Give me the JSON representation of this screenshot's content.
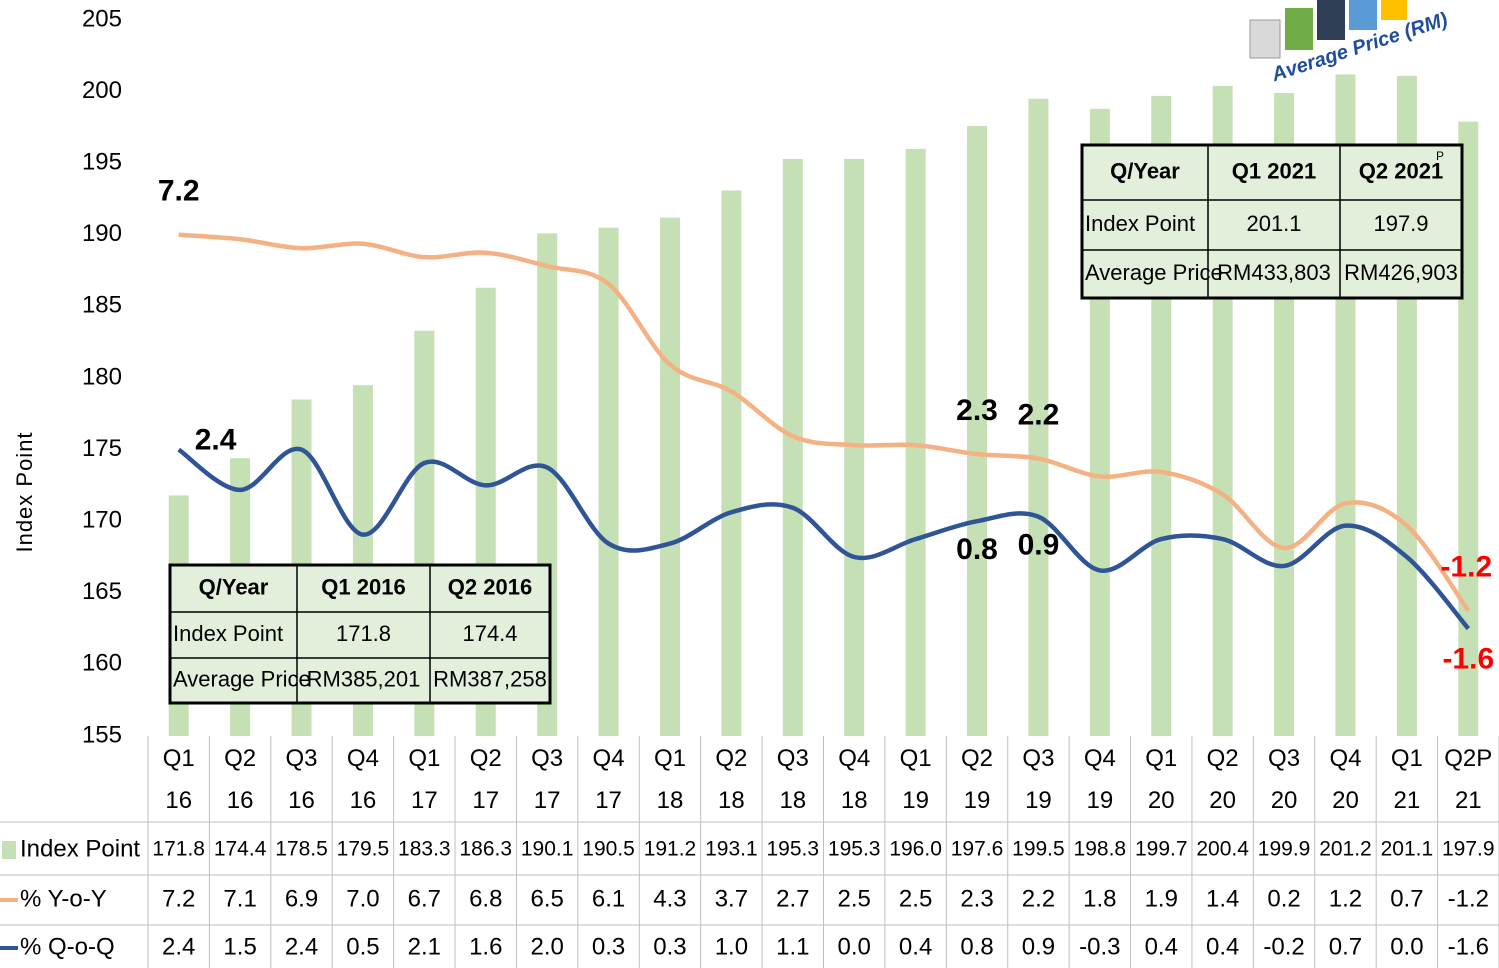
{
  "chart_data": {
    "type": "bar",
    "y_label": "Index Point",
    "logo_text": "Average Price (RM)",
    "categories": [
      [
        "Q1",
        "16"
      ],
      [
        "Q2",
        "16"
      ],
      [
        "Q3",
        "16"
      ],
      [
        "Q4",
        "16"
      ],
      [
        "Q1",
        "17"
      ],
      [
        "Q2",
        "17"
      ],
      [
        "Q3",
        "17"
      ],
      [
        "Q4",
        "17"
      ],
      [
        "Q1",
        "18"
      ],
      [
        "Q2",
        "18"
      ],
      [
        "Q3",
        "18"
      ],
      [
        "Q4",
        "18"
      ],
      [
        "Q1",
        "19"
      ],
      [
        "Q2",
        "19"
      ],
      [
        "Q3",
        "19"
      ],
      [
        "Q4",
        "19"
      ],
      [
        "Q1",
        "20"
      ],
      [
        "Q2",
        "20"
      ],
      [
        "Q3",
        "20"
      ],
      [
        "Q4",
        "20"
      ],
      [
        "Q1",
        "21"
      ],
      [
        "Q2P",
        "21"
      ]
    ],
    "ylim": [
      155,
      205
    ],
    "yticks": [
      155,
      160,
      165,
      170,
      175,
      180,
      185,
      190,
      195,
      200,
      205
    ],
    "y2lim": [
      -4,
      12
    ],
    "series": [
      {
        "name": "Index Point",
        "type": "bar",
        "color": "#c5e0b4",
        "values": [
          171.8,
          174.4,
          178.5,
          179.5,
          183.3,
          186.3,
          190.1,
          190.5,
          191.2,
          193.1,
          195.3,
          195.3,
          196.0,
          197.6,
          199.5,
          198.8,
          199.7,
          200.4,
          199.9,
          201.2,
          201.1,
          197.9
        ],
        "value_labels": [
          "171.8",
          "174.4",
          "178.5",
          "179.5",
          "183.3",
          "186.3",
          "190.1",
          "190.5",
          "191.2",
          "193.1",
          "195.3",
          "195.3",
          "196.0",
          "197.6",
          "199.5",
          "198.8",
          "199.7",
          "200.4",
          "199.9",
          "201.2",
          "201.1",
          "197.9"
        ]
      },
      {
        "name": "% Y-o-Y",
        "type": "line",
        "axis": "y2",
        "color": "#f4b183",
        "values": [
          7.2,
          7.1,
          6.9,
          7.0,
          6.7,
          6.8,
          6.5,
          6.1,
          4.3,
          3.7,
          2.7,
          2.5,
          2.5,
          2.3,
          2.2,
          1.8,
          1.9,
          1.4,
          0.2,
          1.2,
          0.7,
          -1.2
        ],
        "value_labels": [
          "7.2",
          "7.1",
          "6.9",
          "7.0",
          "6.7",
          "6.8",
          "6.5",
          "6.1",
          "4.3",
          "3.7",
          "2.7",
          "2.5",
          "2.5",
          "2.3",
          "2.2",
          "1.8",
          "1.9",
          "1.4",
          "0.2",
          "1.2",
          "0.7",
          "-1.2"
        ]
      },
      {
        "name": "% Q-o-Q",
        "type": "line",
        "axis": "y2",
        "color": "#2f5597",
        "values": [
          2.4,
          1.5,
          2.4,
          0.5,
          2.1,
          1.6,
          2.0,
          0.3,
          0.3,
          1.0,
          1.1,
          0.0,
          0.4,
          0.8,
          0.9,
          -0.3,
          0.4,
          0.4,
          -0.2,
          0.7,
          0.0,
          -1.6
        ],
        "value_labels": [
          "2.4",
          "1.5",
          "2.4",
          "0.5",
          "2.1",
          "1.6",
          "2.0",
          "0.3",
          "0.3",
          "1.0",
          "1.1",
          "0.0",
          "0.4",
          "0.8",
          "0.9",
          "-0.3",
          "0.4",
          "0.4",
          "-0.2",
          "0.7",
          "0.0",
          "-1.6"
        ]
      }
    ],
    "inset_tables": [
      {
        "rows": [
          [
            "Q/Year",
            "Q1 2016",
            "Q2 2016"
          ],
          [
            "Index Point",
            "171.8",
            "174.4"
          ],
          [
            "Average Price",
            "RM385,201",
            "RM387,258"
          ]
        ]
      },
      {
        "rows": [
          [
            "Q/Year",
            "Q1 2021",
            "Q2 2021"
          ],
          [
            "Index Point",
            "201.1",
            "197.9"
          ],
          [
            "Average Price",
            "RM433,803",
            "RM426,903"
          ]
        ],
        "header_sup": "P"
      }
    ]
  }
}
